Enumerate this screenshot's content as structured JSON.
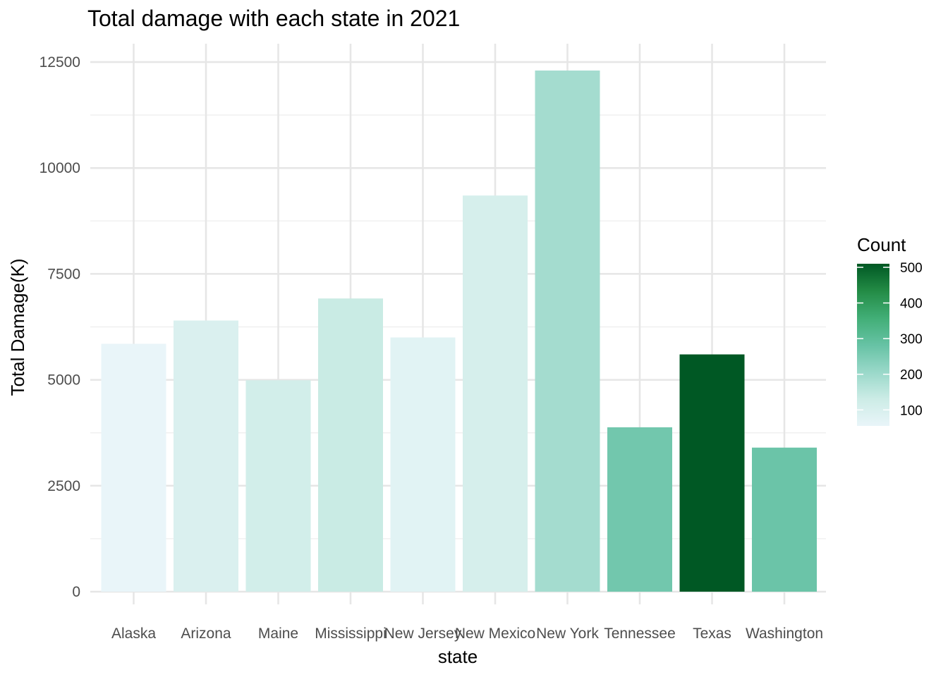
{
  "chart_data": {
    "type": "bar",
    "title": "Total damage with each state in 2021",
    "xlabel": "state",
    "ylabel": "Total Damage(K)",
    "categories": [
      "Alaska",
      "Arizona",
      "Maine",
      "Mississippi",
      "New Jersey",
      "New Mexico",
      "New York",
      "Tennessee",
      "Texas",
      "Washington"
    ],
    "values": [
      5850,
      6400,
      4990,
      6920,
      6000,
      9350,
      12300,
      3880,
      5600,
      3400
    ],
    "counts": [
      55,
      95,
      115,
      135,
      75,
      105,
      190,
      265,
      510,
      275
    ],
    "ylim": [
      0,
      12800
    ],
    "yticks": [
      0,
      2500,
      5000,
      7500,
      10000,
      12500
    ],
    "grid": true,
    "legend": {
      "title": "Count",
      "position": "right",
      "ticks": [
        100,
        200,
        300,
        400,
        500
      ],
      "range": [
        55,
        510
      ],
      "colors": [
        "#e9f5f9",
        "#ccece6",
        "#99d8c9",
        "#66c2a4",
        "#41ae76",
        "#238b45",
        "#005824"
      ]
    }
  }
}
